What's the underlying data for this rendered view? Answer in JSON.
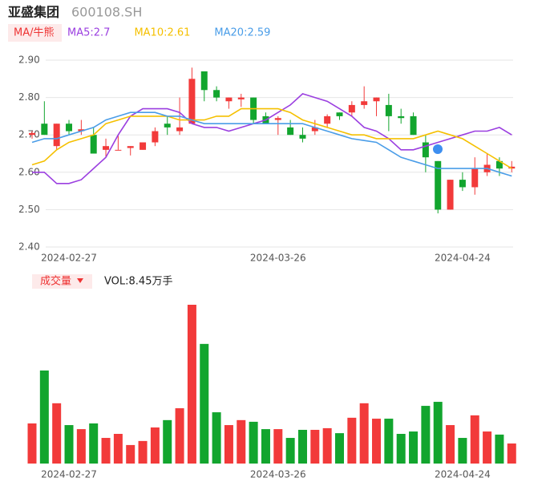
{
  "chart_data": {
    "type": "candlestick",
    "title": "亚盛集团",
    "subtitle": "600108.SH",
    "indicator_label": "MA/牛熊",
    "volume_label": "成交量",
    "volume_readout": "VOL:8.45万手",
    "categories": [
      null,
      null,
      null,
      "2024-02-27",
      null,
      null,
      null,
      null,
      null,
      null,
      null,
      null,
      null,
      null,
      null,
      null,
      null,
      null,
      null,
      null,
      "2024-03-26",
      null,
      null,
      null,
      null,
      null,
      null,
      null,
      null,
      null,
      null,
      null,
      null,
      null,
      null,
      "2024-04-24",
      null,
      null,
      null,
      null
    ],
    "open": [
      2.7,
      2.73,
      2.67,
      2.73,
      2.71,
      2.7,
      2.66,
      2.66,
      2.665,
      2.66,
      2.68,
      2.73,
      2.71,
      2.73,
      2.87,
      2.82,
      2.79,
      2.795,
      2.8,
      2.75,
      2.74,
      2.72,
      2.7,
      2.71,
      2.73,
      2.76,
      2.76,
      2.78,
      2.79,
      2.78,
      2.75,
      2.75,
      2.68,
      2.63,
      2.5,
      2.58,
      2.56,
      2.6,
      2.63,
      2.61
    ],
    "high": [
      2.71,
      2.79,
      2.73,
      2.74,
      2.74,
      2.72,
      2.69,
      2.7,
      2.67,
      2.68,
      2.72,
      2.75,
      2.8,
      2.88,
      2.87,
      2.83,
      2.8,
      2.81,
      2.8,
      2.76,
      2.75,
      2.74,
      2.72,
      2.74,
      2.755,
      2.76,
      2.79,
      2.83,
      2.8,
      2.81,
      2.77,
      2.76,
      2.7,
      2.63,
      2.58,
      2.6,
      2.64,
      2.65,
      2.64,
      2.63
    ],
    "low": [
      2.69,
      2.7,
      2.66,
      2.7,
      2.7,
      2.65,
      2.64,
      2.66,
      2.645,
      2.66,
      2.67,
      2.7,
      2.7,
      2.73,
      2.79,
      2.79,
      2.77,
      2.775,
      2.73,
      2.73,
      2.7,
      2.7,
      2.68,
      2.7,
      2.72,
      2.74,
      2.75,
      2.77,
      2.75,
      2.71,
      2.73,
      2.7,
      2.6,
      2.49,
      2.5,
      2.55,
      2.54,
      2.59,
      2.59,
      2.6
    ],
    "close": [
      2.705,
      2.7,
      2.73,
      2.71,
      2.715,
      2.65,
      2.67,
      2.66,
      2.67,
      2.68,
      2.71,
      2.72,
      2.72,
      2.85,
      2.82,
      2.8,
      2.8,
      2.8,
      2.74,
      2.73,
      2.745,
      2.7,
      2.69,
      2.72,
      2.75,
      2.75,
      2.78,
      2.79,
      2.8,
      2.75,
      2.745,
      2.7,
      2.64,
      2.5,
      2.58,
      2.56,
      2.61,
      2.62,
      2.61,
      2.615
    ],
    "up_color": "#f23a3a",
    "down_color": "#12a52e",
    "series": [
      {
        "name": "MA5",
        "label": "MA5:2.7",
        "color": "#9b3fe0",
        "values": [
          2.6,
          2.6,
          2.57,
          2.57,
          2.58,
          2.61,
          2.64,
          2.7,
          2.75,
          2.77,
          2.77,
          2.77,
          2.76,
          2.73,
          2.72,
          2.72,
          2.71,
          2.72,
          2.73,
          2.74,
          2.76,
          2.78,
          2.81,
          2.8,
          2.79,
          2.77,
          2.75,
          2.72,
          2.71,
          2.69,
          2.66,
          2.66,
          2.67,
          2.68,
          2.69,
          2.7,
          2.71,
          2.71,
          2.72,
          2.7
        ]
      },
      {
        "name": "MA10",
        "label": "MA10:2.61",
        "color": "#f5c000",
        "values": [
          2.62,
          2.63,
          2.66,
          2.68,
          2.69,
          2.7,
          2.73,
          2.74,
          2.75,
          2.75,
          2.75,
          2.75,
          2.74,
          2.74,
          2.74,
          2.75,
          2.75,
          2.77,
          2.77,
          2.77,
          2.77,
          2.76,
          2.74,
          2.73,
          2.72,
          2.71,
          2.7,
          2.7,
          2.69,
          2.69,
          2.69,
          2.69,
          2.7,
          2.71,
          2.7,
          2.69,
          2.67,
          2.65,
          2.63,
          2.61
        ]
      },
      {
        "name": "MA20",
        "label": "MA20:2.59",
        "color": "#4a9de8",
        "values": [
          2.68,
          2.69,
          2.69,
          2.7,
          2.71,
          2.72,
          2.74,
          2.75,
          2.76,
          2.76,
          2.76,
          2.75,
          2.75,
          2.74,
          2.73,
          2.73,
          2.73,
          2.73,
          2.73,
          2.73,
          2.73,
          2.73,
          2.73,
          2.72,
          2.71,
          2.7,
          2.69,
          2.685,
          2.68,
          2.66,
          2.64,
          2.63,
          2.62,
          2.61,
          2.61,
          2.61,
          2.61,
          2.61,
          2.6,
          2.59
        ]
      }
    ],
    "volume": [
      16.9,
      39.2,
      25.4,
      16.2,
      14.5,
      16.9,
      10.8,
      12.5,
      7.8,
      9.5,
      15.2,
      18.3,
      23.3,
      66.9,
      50.4,
      21.6,
      16.2,
      18.3,
      17.6,
      14.5,
      14.5,
      10.8,
      14.2,
      14.2,
      14.9,
      12.8,
      19.3,
      25.4,
      18.9,
      18.9,
      12.5,
      13.5,
      24.3,
      26.0,
      16.2,
      10.8,
      20.3,
      13.5,
      12.2,
      8.45
    ],
    "ylim": [
      2.4,
      2.9
    ],
    "yticks": [
      {
        "value": 2.4,
        "label": "2.40"
      },
      {
        "value": 2.5,
        "label": "2.50"
      },
      {
        "value": 2.6,
        "label": "2.60"
      },
      {
        "value": 2.7,
        "label": "2.70"
      },
      {
        "value": 2.8,
        "label": "2.80"
      },
      {
        "value": 2.9,
        "label": "2.90"
      }
    ],
    "grid": true
  }
}
